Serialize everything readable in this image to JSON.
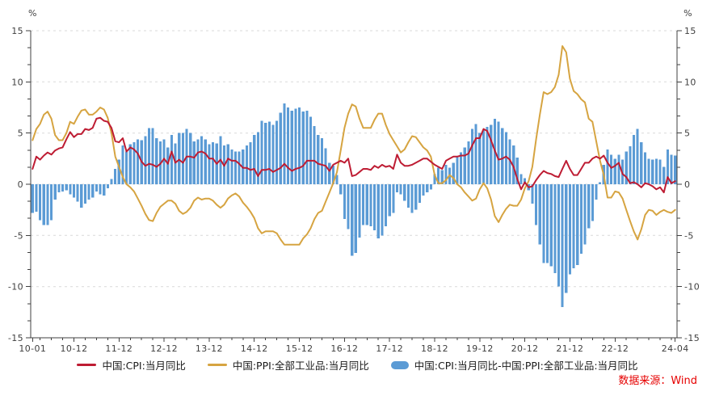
{
  "chart_data": {
    "type": "mixed",
    "title": "",
    "unit_left": "%",
    "unit_right": "%",
    "source_note": "数据来源：Wind",
    "start_month": "2010-01",
    "end_month": "2024-04",
    "ylim": [
      -15,
      15
    ],
    "y_ticks": [
      15,
      10,
      5,
      0,
      -5,
      -10,
      -15
    ],
    "y_minor_ticks_per_interval": 2,
    "grid": "dashed-horizontal",
    "legend_position": "bottom-center",
    "x_tick_labels": [
      "10-01",
      "10-12",
      "11-12",
      "12-12",
      "13-12",
      "14-12",
      "15-12",
      "16-12",
      "17-12",
      "18-12",
      "19-12",
      "20-12",
      "21-12",
      "22-12",
      "24-04"
    ],
    "colors": {
      "grid": "#d9d9d9",
      "axis": "#404040",
      "tick_label": "#3f3f3f",
      "legend_text": "#1a1a1a",
      "source_text": "#e60000"
    },
    "series": [
      {
        "name": "中国:CPI:当月同比",
        "type": "line",
        "color": "#be1c33",
        "values": [
          1.5,
          2.7,
          2.4,
          2.8,
          3.1,
          2.9,
          3.3,
          3.5,
          3.6,
          4.4,
          5.1,
          4.6,
          4.9,
          4.9,
          5.4,
          5.3,
          5.5,
          6.4,
          6.5,
          6.2,
          6.1,
          5.5,
          4.2,
          4.1,
          4.5,
          3.2,
          3.6,
          3.4,
          3.0,
          2.2,
          1.8,
          2.0,
          1.9,
          1.7,
          2.0,
          2.5,
          2.0,
          3.2,
          2.1,
          2.4,
          2.1,
          2.7,
          2.7,
          2.6,
          3.1,
          3.2,
          3.0,
          2.5,
          2.5,
          2.0,
          2.4,
          1.8,
          2.5,
          2.3,
          2.3,
          2.0,
          1.6,
          1.6,
          1.4,
          1.5,
          0.8,
          1.4,
          1.4,
          1.5,
          1.2,
          1.4,
          1.6,
          2.0,
          1.6,
          1.3,
          1.5,
          1.6,
          1.8,
          2.3,
          2.3,
          2.3,
          2.0,
          1.9,
          1.8,
          1.3,
          1.9,
          2.1,
          2.3,
          2.1,
          2.5,
          0.8,
          0.9,
          1.2,
          1.5,
          1.5,
          1.4,
          1.8,
          1.6,
          1.9,
          1.7,
          1.8,
          1.5,
          2.9,
          2.1,
          1.8,
          1.8,
          1.9,
          2.1,
          2.3,
          2.5,
          2.5,
          2.2,
          1.9,
          1.7,
          1.5,
          2.3,
          2.5,
          2.7,
          2.7,
          2.8,
          2.8,
          3.0,
          3.8,
          4.5,
          4.5,
          5.4,
          5.2,
          4.3,
          3.3,
          2.4,
          2.5,
          2.7,
          2.4,
          1.7,
          0.5,
          -0.5,
          0.2,
          -0.3,
          -0.2,
          0.4,
          0.9,
          1.3,
          1.1,
          1.0,
          0.8,
          0.7,
          1.5,
          2.3,
          1.5,
          0.9,
          0.9,
          1.5,
          2.1,
          2.1,
          2.5,
          2.7,
          2.5,
          2.8,
          2.1,
          1.6,
          1.8,
          2.1,
          1.0,
          0.7,
          0.1,
          0.2,
          0.0,
          -0.3,
          0.1,
          0.0,
          -0.2,
          -0.5,
          -0.3,
          -0.8,
          0.7,
          0.1,
          0.3
        ]
      },
      {
        "name": "中国:PPI:全部工业品:当月同比",
        "type": "line",
        "color": "#d6a441",
        "values": [
          4.3,
          5.4,
          5.9,
          6.8,
          7.1,
          6.4,
          4.8,
          4.3,
          4.3,
          5.0,
          6.1,
          5.9,
          6.6,
          7.2,
          7.3,
          6.8,
          6.8,
          7.1,
          7.5,
          7.3,
          6.5,
          5.0,
          2.7,
          1.7,
          0.7,
          0.0,
          -0.3,
          -0.7,
          -1.4,
          -2.1,
          -2.9,
          -3.5,
          -3.6,
          -2.8,
          -2.2,
          -1.9,
          -1.6,
          -1.6,
          -1.9,
          -2.6,
          -2.9,
          -2.7,
          -2.3,
          -1.6,
          -1.3,
          -1.5,
          -1.4,
          -1.4,
          -1.6,
          -2.0,
          -2.3,
          -2.0,
          -1.4,
          -1.1,
          -0.9,
          -1.2,
          -1.8,
          -2.2,
          -2.7,
          -3.3,
          -4.3,
          -4.8,
          -4.6,
          -4.6,
          -4.6,
          -4.8,
          -5.4,
          -5.9,
          -5.9,
          -5.9,
          -5.9,
          -5.9,
          -5.3,
          -4.9,
          -4.3,
          -3.4,
          -2.8,
          -2.6,
          -1.7,
          -0.8,
          0.1,
          1.2,
          3.3,
          5.5,
          6.9,
          7.8,
          7.6,
          6.4,
          5.5,
          5.5,
          5.5,
          6.3,
          6.9,
          6.9,
          5.8,
          4.9,
          4.3,
          3.7,
          3.1,
          3.4,
          4.1,
          4.7,
          4.6,
          4.1,
          3.6,
          3.3,
          2.7,
          0.9,
          0.1,
          0.1,
          0.4,
          0.9,
          0.6,
          0.0,
          -0.3,
          -0.8,
          -1.2,
          -1.6,
          -1.4,
          -0.5,
          0.1,
          -0.4,
          -1.5,
          -3.1,
          -3.7,
          -3.0,
          -2.4,
          -2.0,
          -2.1,
          -2.1,
          -1.5,
          -0.4,
          0.3,
          1.7,
          4.4,
          6.8,
          9.0,
          8.8,
          9.0,
          9.5,
          10.7,
          13.5,
          12.9,
          10.3,
          9.1,
          8.8,
          8.3,
          8.0,
          6.4,
          6.1,
          4.2,
          2.3,
          0.9,
          -1.3,
          -1.3,
          -0.7,
          -0.8,
          -1.4,
          -2.5,
          -3.6,
          -4.6,
          -5.4,
          -4.4,
          -3.0,
          -2.5,
          -2.6,
          -3.0,
          -2.7,
          -2.5,
          -2.7,
          -2.8,
          -2.5
        ]
      },
      {
        "name": "中国:CPI:当月同比-中国:PPI:全部工业品:当月同比",
        "type": "bar",
        "color": "#5b9bd5",
        "derived": "series[0].values - series[1].values"
      }
    ]
  }
}
